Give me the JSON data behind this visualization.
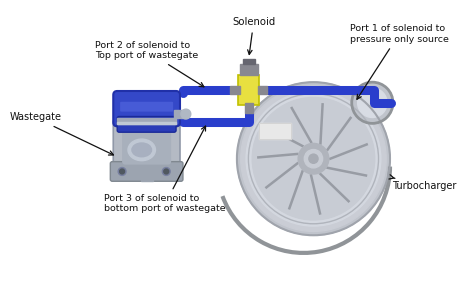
{
  "background_color": "#ffffff",
  "labels": {
    "solenoid": "Solenoid",
    "port1": "Port 1 of solenoid to\npressure only source",
    "port2": "Port 2 of solenoid to\nTop port of wastegate",
    "port3": "Port 3 of solenoid to\nbottom port of wastegate",
    "wastegate": "Wastegate",
    "turbocharger": "Turbocharger"
  },
  "colors": {
    "background": "#ffffff",
    "wastegate_blue_top": "#3a4ecc",
    "wastegate_blue_mid": "#2a3ebc",
    "wastegate_blue_stripe": "#6688ee",
    "wastegate_metal": "#a0a8b8",
    "wastegate_metal_dark": "#8090a0",
    "turbo_outer": "#c0c4cc",
    "turbo_mid": "#d0d4dc",
    "turbo_inner": "#b8bcc4",
    "turbo_hub": "#a0a4ac",
    "turbo_blade": "#909498",
    "turbo_inlet": "#c8ccd4",
    "solenoid_yellow": "#e8e040",
    "solenoid_gray": "#888890",
    "pipe_blue": "#2a3ecc",
    "pipe_dark_blue": "#1a2eb8",
    "text_color": "#111111"
  },
  "fig_width": 4.74,
  "fig_height": 2.87,
  "dpi": 100
}
